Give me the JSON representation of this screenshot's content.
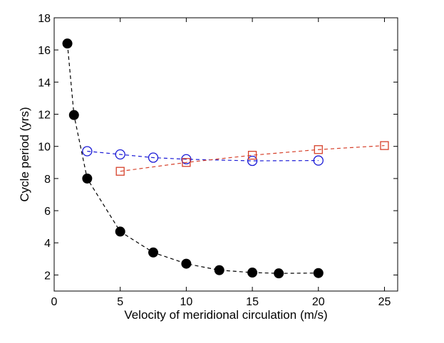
{
  "chart_data": {
    "type": "line",
    "title": "",
    "xlabel": "Velocity of meridional circulation (m/s)",
    "ylabel": "Cycle period (yrs)",
    "xlim": [
      0,
      26
    ],
    "ylim": [
      1,
      18
    ],
    "xticks": [
      0,
      5,
      10,
      15,
      20,
      25
    ],
    "yticks": [
      2,
      4,
      6,
      8,
      10,
      12,
      14,
      16,
      18
    ],
    "grid": false,
    "series": [
      {
        "name": "filled-circle",
        "marker": "filled-circle",
        "color": "#000000",
        "line_style": "dashed",
        "x": [
          1,
          1.5,
          2.5,
          5,
          7.5,
          10,
          12.5,
          15,
          17,
          20
        ],
        "y": [
          16.4,
          11.95,
          8.0,
          4.7,
          3.4,
          2.7,
          2.3,
          2.15,
          2.1,
          2.12
        ]
      },
      {
        "name": "open-circle",
        "marker": "open-circle",
        "color": "#1a1ad6",
        "line_style": "dashed",
        "x": [
          2.5,
          5,
          7.5,
          10,
          15,
          20
        ],
        "y": [
          9.7,
          9.5,
          9.3,
          9.2,
          9.1,
          9.12
        ]
      },
      {
        "name": "open-square",
        "marker": "open-square",
        "color": "#d6402a",
        "line_style": "dashed",
        "x": [
          5,
          10,
          15,
          20,
          25
        ],
        "y": [
          8.45,
          9.0,
          9.45,
          9.8,
          10.05
        ]
      }
    ]
  }
}
